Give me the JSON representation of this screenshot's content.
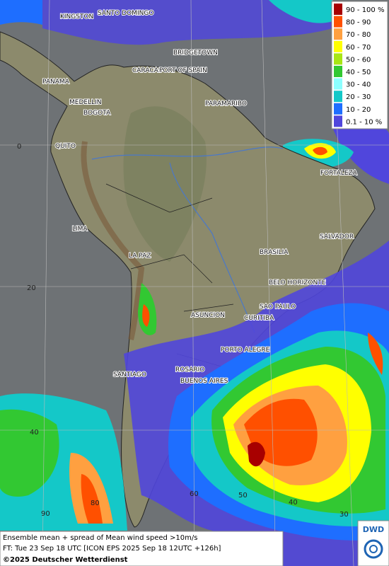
{
  "map": {
    "cities": [
      "KINGSTON",
      "SANTO DOMINGO",
      "BRIDGETOWN",
      "CARACAS",
      "PORT OF SPAIN",
      "PANAMA",
      "MEDELLIN",
      "BOGOTA",
      "PARAMARIBO",
      "QUITO",
      "FORTALEZA",
      "LIMA",
      "SALVADOR",
      "LA PAZ",
      "BRASILIA",
      "BELO HORIZONTE",
      "SAO PAULO",
      "ASUNCION",
      "CURITIBA",
      "PORTO ALEGRE",
      "SANTIAGO",
      "ROSARIO",
      "BUENOS AIRES"
    ],
    "lat_labels": [
      0,
      20,
      40
    ],
    "lon_labels": [
      90,
      80,
      60,
      50,
      40,
      30
    ]
  },
  "legend": {
    "items": [
      {
        "label": "90 - 100 %",
        "color": "#a80000"
      },
      {
        "label": "80 - 90",
        "color": "#ff5000"
      },
      {
        "label": "70 - 80",
        "color": "#ffa040"
      },
      {
        "label": "60 - 70",
        "color": "#ffff00"
      },
      {
        "label": "50 - 60",
        "color": "#a8e614"
      },
      {
        "label": "40 - 50",
        "color": "#32c832"
      },
      {
        "label": "30 - 40",
        "color": "#8cffff"
      },
      {
        "label": "20 - 30",
        "color": "#14c8c8"
      },
      {
        "label": "10 - 20",
        "color": "#1e6eff"
      },
      {
        "label": "0.1 - 10 %",
        "color": "#5046dc"
      }
    ]
  },
  "footer": {
    "line1": "Ensemble mean + spread of Mean wind speed >10m/s",
    "line2": "FT: Tue 23 Sep 18 UTC [ICON EPS 2025 Sep 18 12UTC +126h]",
    "copyright": "©2025 Deutscher Wetterdienst",
    "logo": "DWD"
  }
}
